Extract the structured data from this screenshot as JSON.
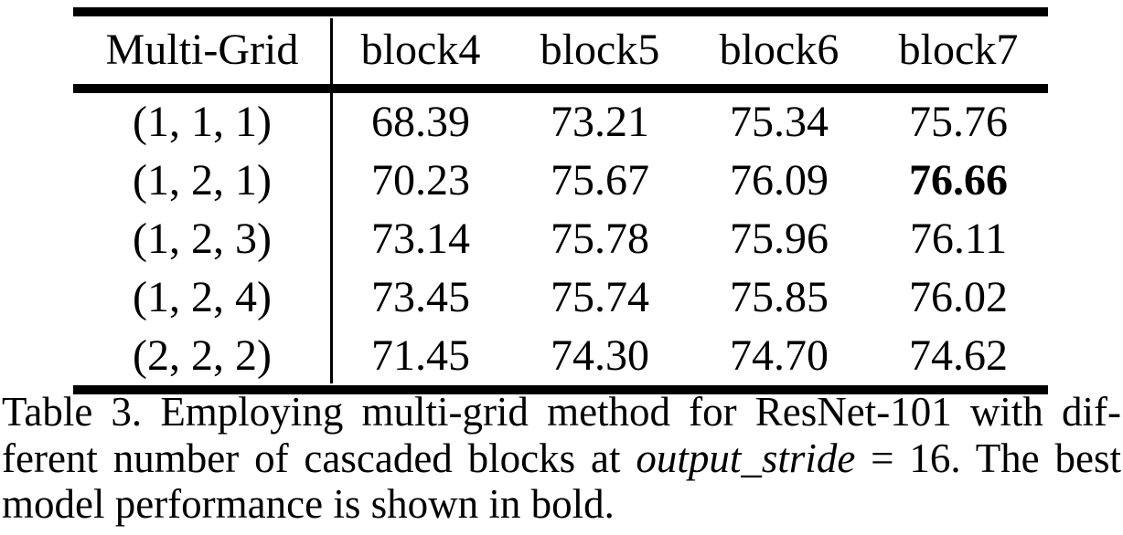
{
  "table": {
    "header": {
      "col0": "Multi-Grid",
      "cols": [
        "block4",
        "block5",
        "block6",
        "block7"
      ]
    },
    "rows": [
      {
        "label": "(1, 1, 1)",
        "values": [
          "68.39",
          "73.21",
          "75.34",
          "75.76"
        ]
      },
      {
        "label": "(1, 2, 1)",
        "values": [
          "70.23",
          "75.67",
          "76.09",
          "76.66"
        ]
      },
      {
        "label": "(1, 2, 3)",
        "values": [
          "73.14",
          "75.78",
          "75.96",
          "76.11"
        ]
      },
      {
        "label": "(1, 2, 4)",
        "values": [
          "73.45",
          "75.74",
          "75.85",
          "76.02"
        ]
      },
      {
        "label": "(2, 2, 2)",
        "values": [
          "71.45",
          "74.30",
          "74.70",
          "74.62"
        ]
      }
    ],
    "best_value": "76.66",
    "best_cell": {
      "row": 1,
      "col": 3
    }
  },
  "chart_data": {
    "type": "table",
    "title": "Table 3",
    "categories": [
      "block4",
      "block5",
      "block6",
      "block7"
    ],
    "series": [
      {
        "name": "(1, 1, 1)",
        "values": [
          68.39,
          73.21,
          75.34,
          75.76
        ]
      },
      {
        "name": "(1, 2, 1)",
        "values": [
          70.23,
          75.67,
          76.09,
          76.66
        ]
      },
      {
        "name": "(1, 2, 3)",
        "values": [
          73.14,
          75.78,
          75.96,
          76.11
        ]
      },
      {
        "name": "(1, 2, 4)",
        "values": [
          73.45,
          75.74,
          75.85,
          76.02
        ]
      },
      {
        "name": "(2, 2, 2)",
        "values": [
          71.45,
          74.3,
          74.7,
          74.62
        ]
      }
    ]
  },
  "caption": {
    "line1": "Table 3. Employing multi-grid method for ResNet-101 with dif-",
    "line2_pre": "ferent number of cascaded blocks at ",
    "line2_italic": "output_stride",
    "line2_post": " = 16. The best",
    "line3": "model performance is shown in bold."
  },
  "colors": {
    "text": "#000000",
    "background": "#ffffff",
    "rule": "#000000"
  }
}
